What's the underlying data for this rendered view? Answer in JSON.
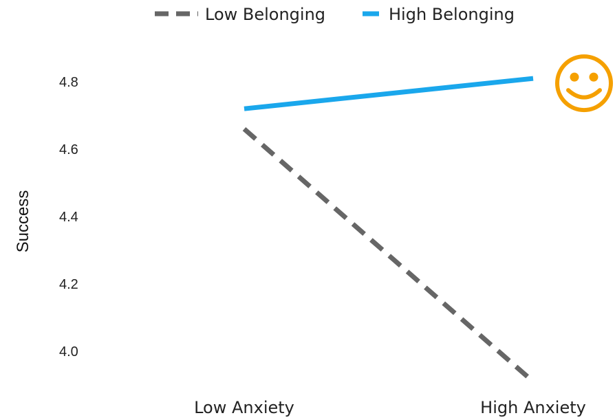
{
  "chart_data": {
    "type": "line",
    "categories": [
      "Low Anxiety",
      "High Anxiety"
    ],
    "series": [
      {
        "name": "Low Belonging",
        "values": [
          4.66,
          3.91
        ],
        "color": "#666666",
        "style": "dashed"
      },
      {
        "name": "High Belonging",
        "values": [
          4.72,
          4.81
        ],
        "color": "#1aa7ec",
        "style": "solid"
      }
    ],
    "ylabel": "Success",
    "xlabel": "",
    "yticks": [
      "4.0",
      "4.2",
      "4.4",
      "4.6",
      "4.8"
    ],
    "ylim": [
      3.9,
      4.9
    ],
    "grid": false,
    "legend_position": "top-center",
    "annotation": {
      "icon": "smiley-face-icon",
      "color": "#f5a000",
      "series": "High Belonging",
      "category": "High Anxiety"
    }
  }
}
